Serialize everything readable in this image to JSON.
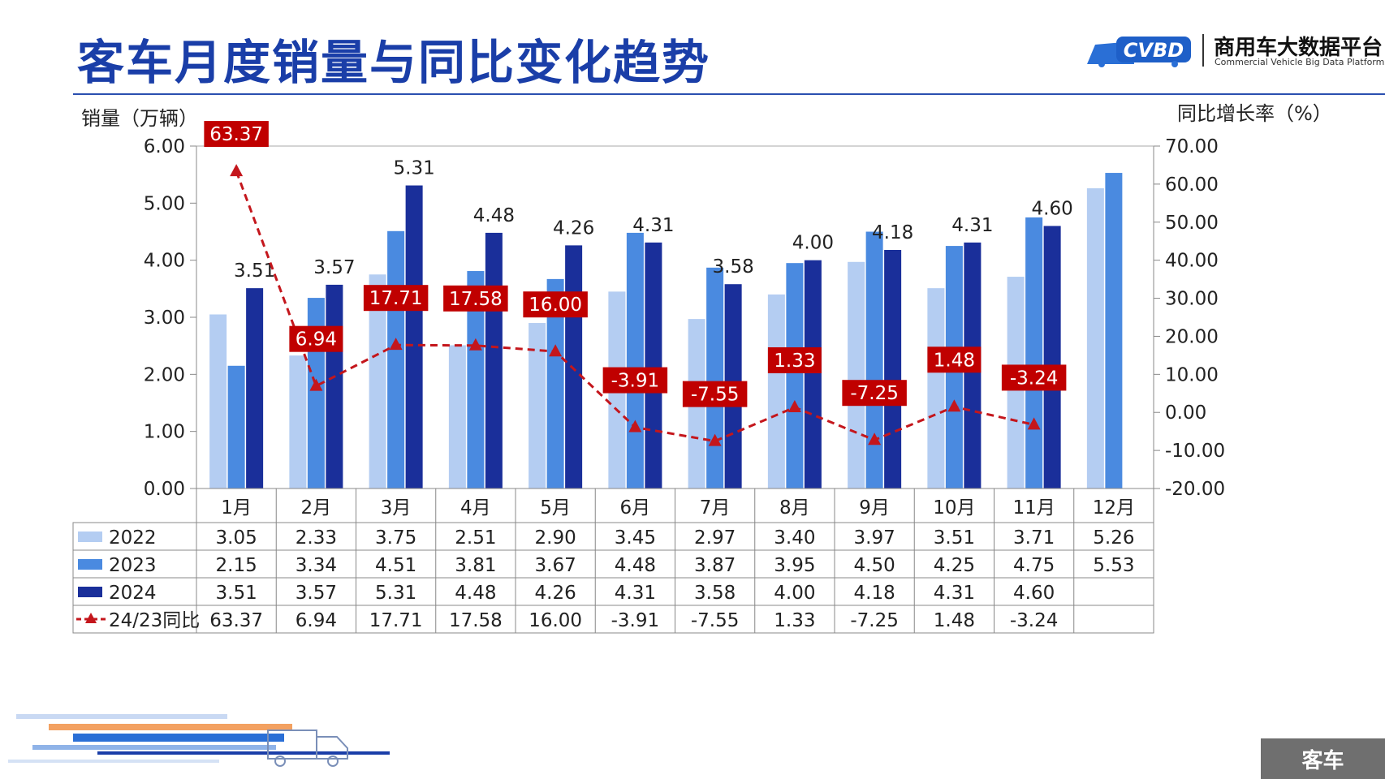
{
  "header": {
    "title": "客车月度销量与同比变化趋势",
    "logo_cn": "商用车大数据平台",
    "logo_en": "Commercial Vehicle Big Data Platform",
    "logo_mark": "CVBD"
  },
  "section_tag": "客车",
  "colors": {
    "title": "#1a3ea8",
    "series_2022": "#b4cdf2",
    "series_2023": "#4a8ae0",
    "series_2024": "#1a2f9a",
    "yoy_line": "#c4161c",
    "yoy_label_bg": "#c00000"
  },
  "chart_data": {
    "type": "bar",
    "left_axis_title": "销量（万辆）",
    "right_axis_title": "同比增长率（%）",
    "categories": [
      "1月",
      "2月",
      "3月",
      "4月",
      "5月",
      "6月",
      "7月",
      "8月",
      "9月",
      "10月",
      "11月",
      "12月"
    ],
    "ylim": [
      0,
      6
    ],
    "y_ticks": [
      "0.00",
      "1.00",
      "2.00",
      "3.00",
      "4.00",
      "5.00",
      "6.00"
    ],
    "y2lim": [
      -20,
      70
    ],
    "y2_ticks": [
      "-20.00",
      "-10.00",
      "0.00",
      "10.00",
      "20.00",
      "30.00",
      "40.00",
      "50.00",
      "60.00",
      "70.00"
    ],
    "series": [
      {
        "name": "2022",
        "values": [
          3.05,
          2.33,
          3.75,
          2.51,
          2.9,
          3.45,
          2.97,
          3.4,
          3.97,
          3.51,
          3.71,
          5.26
        ],
        "labels": [
          "3.05",
          "2.33",
          "3.75",
          "2.51",
          "2.90",
          "3.45",
          "2.97",
          "3.40",
          "3.97",
          "3.51",
          "3.71",
          "5.26"
        ]
      },
      {
        "name": "2023",
        "values": [
          2.15,
          3.34,
          4.51,
          3.81,
          3.67,
          4.48,
          3.87,
          3.95,
          4.5,
          4.25,
          4.75,
          5.53
        ],
        "labels": [
          "2.15",
          "3.34",
          "4.51",
          "3.81",
          "3.67",
          "4.48",
          "3.87",
          "3.95",
          "4.50",
          "4.25",
          "4.75",
          "5.53"
        ]
      },
      {
        "name": "2024",
        "values": [
          3.51,
          3.57,
          5.31,
          4.48,
          4.26,
          4.31,
          3.58,
          4.0,
          4.18,
          4.31,
          4.6,
          null
        ],
        "labels": [
          "3.51",
          "3.57",
          "5.31",
          "4.48",
          "4.26",
          "4.31",
          "3.58",
          "4.00",
          "4.18",
          "4.31",
          "4.60",
          ""
        ]
      }
    ],
    "line_series": {
      "name": "24/23同比",
      "axis": "right",
      "values": [
        63.37,
        6.94,
        17.71,
        17.58,
        16.0,
        -3.91,
        -7.55,
        1.33,
        -7.25,
        1.48,
        -3.24,
        null
      ],
      "labels": [
        "63.37",
        "6.94",
        "17.71",
        "17.58",
        "16.00",
        "-3.91",
        "-7.55",
        "1.33",
        "-7.25",
        "1.48",
        "-3.24",
        ""
      ]
    },
    "grid": false,
    "legend": "data-table"
  }
}
